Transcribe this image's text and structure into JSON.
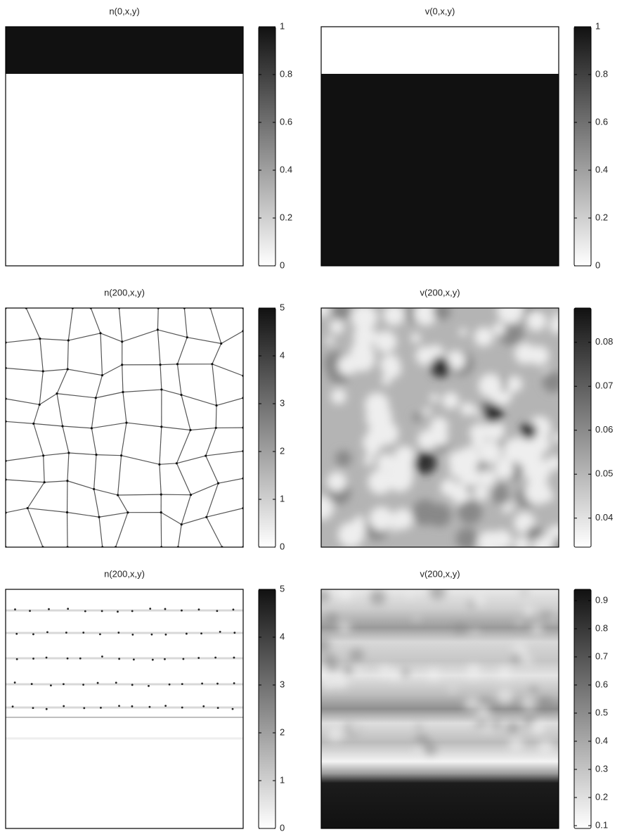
{
  "chart_data": [
    {
      "type": "heatmap",
      "title": "n(0,x,y)",
      "clim": [
        0,
        1
      ],
      "cticks": [
        0,
        0.2,
        0.4,
        0.6,
        0.8,
        1
      ]
    },
    {
      "type": "heatmap",
      "title": "v(0,x,y)",
      "clim": [
        0,
        1
      ],
      "cticks": [
        0,
        0.2,
        0.4,
        0.6,
        0.8,
        1
      ]
    },
    {
      "type": "heatmap",
      "title": "n(200,x,y)",
      "clim": [
        0,
        5
      ],
      "cticks": [
        0,
        1,
        2,
        3,
        4,
        5
      ]
    },
    {
      "type": "heatmap",
      "title": "v(200,x,y)",
      "clim": [
        0.0334,
        0.0878
      ],
      "cticks": [
        0.04,
        0.05,
        0.06,
        0.07,
        0.08
      ]
    },
    {
      "type": "heatmap",
      "title": "n(200,x,y)",
      "clim": [
        0,
        5
      ],
      "cticks": [
        0,
        1,
        2,
        3,
        4,
        5
      ]
    },
    {
      "type": "heatmap",
      "title": "v(200,x,y)",
      "clim": [
        0.09,
        0.94
      ],
      "cticks": [
        0.1,
        0.2,
        0.3,
        0.4,
        0.5,
        0.6,
        0.7,
        0.8,
        0.9
      ]
    }
  ]
}
